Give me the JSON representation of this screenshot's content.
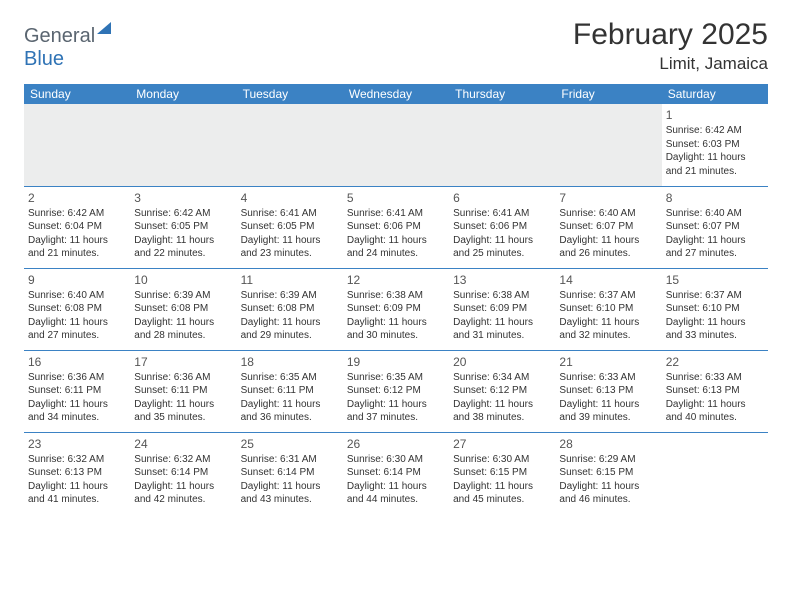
{
  "logo": {
    "word1": "General",
    "word2": "Blue"
  },
  "title": "February 2025",
  "location": "Limit, Jamaica",
  "colors": {
    "header_bg": "#3b82c4",
    "header_text": "#ffffff",
    "cell_border": "#3b82c4",
    "empty_bg": "#eceded",
    "text": "#333333",
    "logo_gray": "#5a6570",
    "logo_blue": "#2f73b5"
  },
  "day_headers": [
    "Sunday",
    "Monday",
    "Tuesday",
    "Wednesday",
    "Thursday",
    "Friday",
    "Saturday"
  ],
  "weeks": [
    [
      null,
      null,
      null,
      null,
      null,
      null,
      {
        "n": "1",
        "sunrise": "6:42 AM",
        "sunset": "6:03 PM",
        "daylight": "11 hours and 21 minutes."
      }
    ],
    [
      {
        "n": "2",
        "sunrise": "6:42 AM",
        "sunset": "6:04 PM",
        "daylight": "11 hours and 21 minutes."
      },
      {
        "n": "3",
        "sunrise": "6:42 AM",
        "sunset": "6:05 PM",
        "daylight": "11 hours and 22 minutes."
      },
      {
        "n": "4",
        "sunrise": "6:41 AM",
        "sunset": "6:05 PM",
        "daylight": "11 hours and 23 minutes."
      },
      {
        "n": "5",
        "sunrise": "6:41 AM",
        "sunset": "6:06 PM",
        "daylight": "11 hours and 24 minutes."
      },
      {
        "n": "6",
        "sunrise": "6:41 AM",
        "sunset": "6:06 PM",
        "daylight": "11 hours and 25 minutes."
      },
      {
        "n": "7",
        "sunrise": "6:40 AM",
        "sunset": "6:07 PM",
        "daylight": "11 hours and 26 minutes."
      },
      {
        "n": "8",
        "sunrise": "6:40 AM",
        "sunset": "6:07 PM",
        "daylight": "11 hours and 27 minutes."
      }
    ],
    [
      {
        "n": "9",
        "sunrise": "6:40 AM",
        "sunset": "6:08 PM",
        "daylight": "11 hours and 27 minutes."
      },
      {
        "n": "10",
        "sunrise": "6:39 AM",
        "sunset": "6:08 PM",
        "daylight": "11 hours and 28 minutes."
      },
      {
        "n": "11",
        "sunrise": "6:39 AM",
        "sunset": "6:08 PM",
        "daylight": "11 hours and 29 minutes."
      },
      {
        "n": "12",
        "sunrise": "6:38 AM",
        "sunset": "6:09 PM",
        "daylight": "11 hours and 30 minutes."
      },
      {
        "n": "13",
        "sunrise": "6:38 AM",
        "sunset": "6:09 PM",
        "daylight": "11 hours and 31 minutes."
      },
      {
        "n": "14",
        "sunrise": "6:37 AM",
        "sunset": "6:10 PM",
        "daylight": "11 hours and 32 minutes."
      },
      {
        "n": "15",
        "sunrise": "6:37 AM",
        "sunset": "6:10 PM",
        "daylight": "11 hours and 33 minutes."
      }
    ],
    [
      {
        "n": "16",
        "sunrise": "6:36 AM",
        "sunset": "6:11 PM",
        "daylight": "11 hours and 34 minutes."
      },
      {
        "n": "17",
        "sunrise": "6:36 AM",
        "sunset": "6:11 PM",
        "daylight": "11 hours and 35 minutes."
      },
      {
        "n": "18",
        "sunrise": "6:35 AM",
        "sunset": "6:11 PM",
        "daylight": "11 hours and 36 minutes."
      },
      {
        "n": "19",
        "sunrise": "6:35 AM",
        "sunset": "6:12 PM",
        "daylight": "11 hours and 37 minutes."
      },
      {
        "n": "20",
        "sunrise": "6:34 AM",
        "sunset": "6:12 PM",
        "daylight": "11 hours and 38 minutes."
      },
      {
        "n": "21",
        "sunrise": "6:33 AM",
        "sunset": "6:13 PM",
        "daylight": "11 hours and 39 minutes."
      },
      {
        "n": "22",
        "sunrise": "6:33 AM",
        "sunset": "6:13 PM",
        "daylight": "11 hours and 40 minutes."
      }
    ],
    [
      {
        "n": "23",
        "sunrise": "6:32 AM",
        "sunset": "6:13 PM",
        "daylight": "11 hours and 41 minutes."
      },
      {
        "n": "24",
        "sunrise": "6:32 AM",
        "sunset": "6:14 PM",
        "daylight": "11 hours and 42 minutes."
      },
      {
        "n": "25",
        "sunrise": "6:31 AM",
        "sunset": "6:14 PM",
        "daylight": "11 hours and 43 minutes."
      },
      {
        "n": "26",
        "sunrise": "6:30 AM",
        "sunset": "6:14 PM",
        "daylight": "11 hours and 44 minutes."
      },
      {
        "n": "27",
        "sunrise": "6:30 AM",
        "sunset": "6:15 PM",
        "daylight": "11 hours and 45 minutes."
      },
      {
        "n": "28",
        "sunrise": "6:29 AM",
        "sunset": "6:15 PM",
        "daylight": "11 hours and 46 minutes."
      },
      null
    ]
  ],
  "labels": {
    "sunrise_prefix": "Sunrise: ",
    "sunset_prefix": "Sunset: ",
    "daylight_prefix": "Daylight: "
  }
}
